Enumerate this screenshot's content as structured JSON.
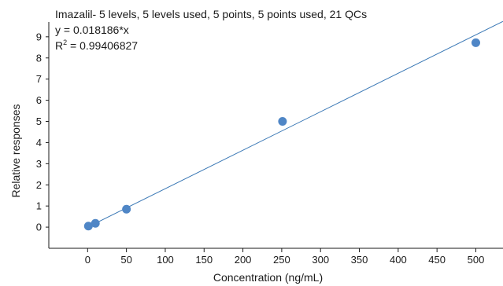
{
  "chart_data": {
    "type": "scatter",
    "title": "Imazalil- 5 levels, 5 levels used, 5 points, 5 points used, 21 QCs",
    "equation": "y = 0.018186*x",
    "r_squared": {
      "prefix": "R",
      "superscript": "2",
      "value": " = 0.99406827"
    },
    "xlabel": "Concentration (ng/mL)",
    "ylabel": "Relative responses",
    "xlim": [
      -50,
      535
    ],
    "ylim": [
      -1,
      9.7
    ],
    "x_ticks": [
      0,
      50,
      100,
      150,
      200,
      250,
      300,
      350,
      400,
      450,
      500
    ],
    "y_ticks": [
      0,
      1,
      2,
      3,
      4,
      5,
      6,
      7,
      8,
      9
    ],
    "points": [
      {
        "x": 1,
        "y": 0.05
      },
      {
        "x": 10,
        "y": 0.18
      },
      {
        "x": 50,
        "y": 0.85
      },
      {
        "x": 251,
        "y": 5.0
      },
      {
        "x": 500,
        "y": 8.72
      }
    ],
    "fit": {
      "slope": 0.018186,
      "intercept": 0,
      "x_range": [
        0,
        535
      ]
    },
    "colors": {
      "point": "#4f86c6",
      "line": "#3a78b5",
      "axis": "#1a1a1a"
    },
    "grid": false,
    "legend": "none"
  }
}
